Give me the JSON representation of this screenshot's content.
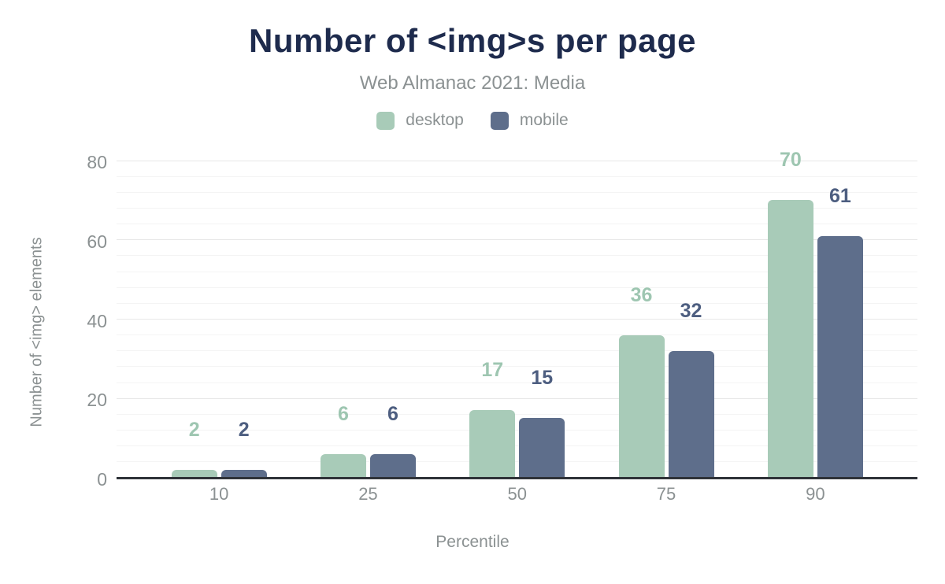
{
  "chart_data": {
    "type": "bar",
    "title": "Number of <img>s per page",
    "subtitle": "Web Almanac 2021: Media",
    "xlabel": "Percentile",
    "ylabel": "Number of <img> elements",
    "categories": [
      "10",
      "25",
      "50",
      "75",
      "90"
    ],
    "series": [
      {
        "name": "desktop",
        "color": "#a8cbb8",
        "label_color": "#9ec6b1",
        "values": [
          2,
          6,
          17,
          36,
          70
        ]
      },
      {
        "name": "mobile",
        "color": "#5e6e8b",
        "label_color": "#4d5e80",
        "values": [
          2,
          6,
          15,
          32,
          61
        ]
      }
    ],
    "ylim": [
      0,
      80
    ],
    "ytick_step": 20,
    "minor_tick_step": 4,
    "grid": "on",
    "legend_position": "top",
    "colors": {
      "title": "#1e2b4d",
      "muted_text": "#8b9192",
      "axis_line": "#2f3338",
      "major_grid": "#e7e7e7",
      "minor_grid": "#f4f4f4",
      "background": "#ffffff"
    }
  }
}
